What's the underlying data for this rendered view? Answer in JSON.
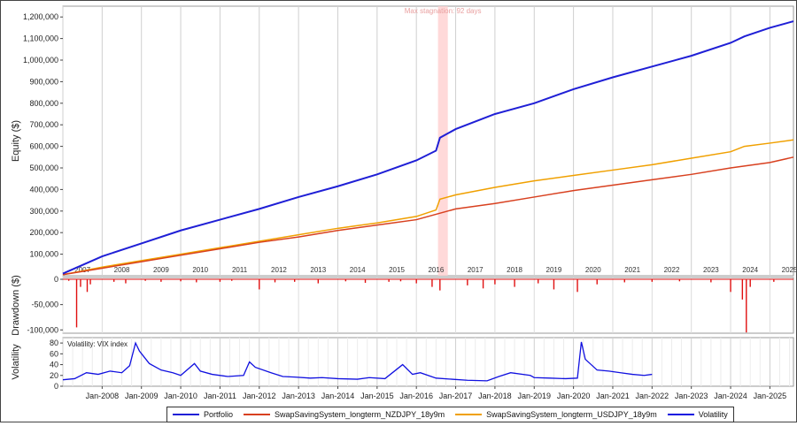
{
  "chart_data": [
    {
      "type": "line",
      "panel": "equity",
      "ylabel": "Equity ($)",
      "ylim": [
        0,
        1250000
      ],
      "yticks": [
        "100,000",
        "200,000",
        "300,000",
        "400,000",
        "500,000",
        "600,000",
        "700,000",
        "800,000",
        "900,000",
        "1,000,000",
        "1,100,000",
        "1,200,000"
      ],
      "ytick_values": [
        100000,
        200000,
        300000,
        400000,
        500000,
        600000,
        700000,
        800000,
        900000,
        1000000,
        1100000,
        1200000
      ],
      "year_labels": [
        "2007",
        "2008",
        "2009",
        "2010",
        "2011",
        "2012",
        "2013",
        "2014",
        "2015",
        "2016",
        "2017",
        "2018",
        "2019",
        "2020",
        "2021",
        "2022",
        "2023",
        "2024",
        "2025"
      ],
      "annotation": "Max stagnation: 92 days",
      "stagnation": {
        "start": 2016.55,
        "end": 2016.8
      },
      "series": [
        {
          "name": "Portfolio",
          "color": "#1f1fd6",
          "x": [
            2007.0,
            2008.0,
            2009.0,
            2010.0,
            2011.0,
            2012.0,
            2013.0,
            2014.0,
            2015.0,
            2016.0,
            2016.5,
            2016.6,
            2017.0,
            2018.0,
            2019.0,
            2020.0,
            2021.0,
            2022.0,
            2023.0,
            2024.0,
            2024.35,
            2025.0,
            2025.6
          ],
          "y": [
            10000,
            90000,
            150000,
            210000,
            260000,
            310000,
            365000,
            415000,
            470000,
            535000,
            580000,
            640000,
            680000,
            750000,
            800000,
            865000,
            920000,
            970000,
            1020000,
            1080000,
            1110000,
            1150000,
            1180000
          ]
        },
        {
          "name": "SwapSavingSystem_longterm_NZDJPY_18y9m",
          "color": "#d8401f",
          "x": [
            2007.0,
            2008.0,
            2009.0,
            2010.0,
            2011.0,
            2012.0,
            2013.0,
            2014.0,
            2015.0,
            2016.0,
            2016.5,
            2017.0,
            2018.0,
            2019.0,
            2020.0,
            2021.0,
            2022.0,
            2023.0,
            2024.0,
            2025.0,
            2025.6
          ],
          "y": [
            5000,
            35000,
            65000,
            95000,
            125000,
            155000,
            180000,
            210000,
            235000,
            260000,
            285000,
            310000,
            335000,
            365000,
            395000,
            420000,
            445000,
            470000,
            500000,
            525000,
            550000
          ]
        },
        {
          "name": "SwapSavingSystem_longterm_USDJPY_18y9m",
          "color": "#f0a000",
          "x": [
            2007.0,
            2008.0,
            2009.0,
            2010.0,
            2011.0,
            2012.0,
            2013.0,
            2014.0,
            2015.0,
            2016.0,
            2016.5,
            2016.6,
            2017.0,
            2018.0,
            2019.0,
            2020.0,
            2021.0,
            2022.0,
            2023.0,
            2024.0,
            2024.35,
            2025.0,
            2025.6
          ],
          "y": [
            5000,
            40000,
            70000,
            100000,
            130000,
            160000,
            190000,
            220000,
            245000,
            275000,
            305000,
            355000,
            375000,
            410000,
            440000,
            465000,
            490000,
            515000,
            545000,
            575000,
            600000,
            615000,
            630000
          ]
        }
      ]
    },
    {
      "type": "bar",
      "panel": "drawdown",
      "ylabel": "Drawdown ($)",
      "ylim": [
        -110000,
        0
      ],
      "yticks": [
        "0",
        "-50,000",
        "-100,000"
      ],
      "ytick_values": [
        0,
        -50000,
        -100000
      ],
      "color": "#e01010",
      "x": [
        2007.15,
        2007.35,
        2007.45,
        2007.62,
        2007.7,
        2008.3,
        2008.6,
        2009.1,
        2009.5,
        2010.0,
        2010.4,
        2011.0,
        2011.3,
        2012.0,
        2012.4,
        2012.9,
        2013.5,
        2014.2,
        2014.7,
        2015.3,
        2015.6,
        2016.0,
        2016.4,
        2016.6,
        2017.3,
        2017.7,
        2018.0,
        2018.5,
        2019.1,
        2019.5,
        2020.1,
        2020.6,
        2021.3,
        2022.0,
        2022.7,
        2023.5,
        2024.0,
        2024.3,
        2024.4,
        2024.5,
        2025.1
      ],
      "values": [
        -3000,
        -95000,
        -15000,
        -25000,
        -10000,
        -5000,
        -8000,
        -3000,
        -5000,
        -4000,
        -6000,
        -5000,
        -3000,
        -20000,
        -6000,
        -5000,
        -8000,
        -4000,
        -7000,
        -5000,
        -4000,
        -8000,
        -15000,
        -22000,
        -12000,
        -18000,
        -10000,
        -15000,
        -8000,
        -20000,
        -25000,
        -10000,
        -6000,
        -5000,
        -4000,
        -6000,
        -25000,
        -40000,
        -105000,
        -15000,
        -5000
      ]
    },
    {
      "type": "line",
      "panel": "volatility",
      "ylabel": "Volatility",
      "title": "Volatility: VIX index",
      "ylim": [
        0,
        90
      ],
      "yticks": [
        "0",
        "20",
        "40",
        "60",
        "80"
      ],
      "ytick_values": [
        0,
        20,
        40,
        60,
        80
      ],
      "x_tick_labels": [
        "Jan-2008",
        "Jan-2009",
        "Jan-2010",
        "Jan-2011",
        "Jan-2012",
        "Jan-2013",
        "Jan-2014",
        "Jan-2015",
        "Jan-2016",
        "Jan-2017",
        "Jan-2018",
        "Jan-2019",
        "Jan-2020",
        "Jan-2021",
        "Jan-2022",
        "Jan-2023",
        "Jan-2024",
        "Jan-2025"
      ],
      "x_tick_values": [
        2008,
        2009,
        2010,
        2011,
        2012,
        2013,
        2014,
        2015,
        2016,
        2017,
        2018,
        2019,
        2020,
        2021,
        2022,
        2023,
        2024,
        2025
      ],
      "series": [
        {
          "name": "Volatility",
          "color": "#1010e0",
          "x": [
            2007.0,
            2007.3,
            2007.6,
            2007.9,
            2008.2,
            2008.5,
            2008.7,
            2008.85,
            2008.95,
            2009.2,
            2009.5,
            2009.8,
            2010.0,
            2010.35,
            2010.5,
            2010.8,
            2011.2,
            2011.6,
            2011.75,
            2011.9,
            2012.3,
            2012.6,
            2012.9,
            2013.3,
            2013.6,
            2014.0,
            2014.5,
            2014.8,
            2015.2,
            2015.65,
            2015.9,
            2016.1,
            2016.5,
            2016.9,
            2017.3,
            2017.8,
            2018.1,
            2018.4,
            2018.9,
            2019.0,
            2019.4,
            2019.8,
            2020.1,
            2020.2,
            2020.3,
            2020.6,
            2020.9,
            2021.2,
            2021.5,
            2021.8,
            2022.0
          ],
          "y": [
            12,
            14,
            25,
            22,
            28,
            25,
            38,
            80,
            65,
            42,
            30,
            25,
            20,
            42,
            28,
            22,
            18,
            20,
            45,
            35,
            25,
            18,
            17,
            15,
            16,
            14,
            13,
            16,
            14,
            40,
            22,
            25,
            15,
            13,
            11,
            10,
            18,
            25,
            20,
            16,
            15,
            14,
            15,
            82,
            50,
            30,
            28,
            25,
            22,
            20,
            22
          ]
        }
      ]
    }
  ],
  "legend": [
    {
      "label": "Portfolio",
      "color": "#1f1fd6"
    },
    {
      "label": "SwapSavingSystem_longterm_NZDJPY_18y9m",
      "color": "#d8401f"
    },
    {
      "label": "SwapSavingSystem_longterm_USDJPY_18y9m",
      "color": "#f0a000"
    },
    {
      "label": "Volatility",
      "color": "#1010e0"
    }
  ]
}
